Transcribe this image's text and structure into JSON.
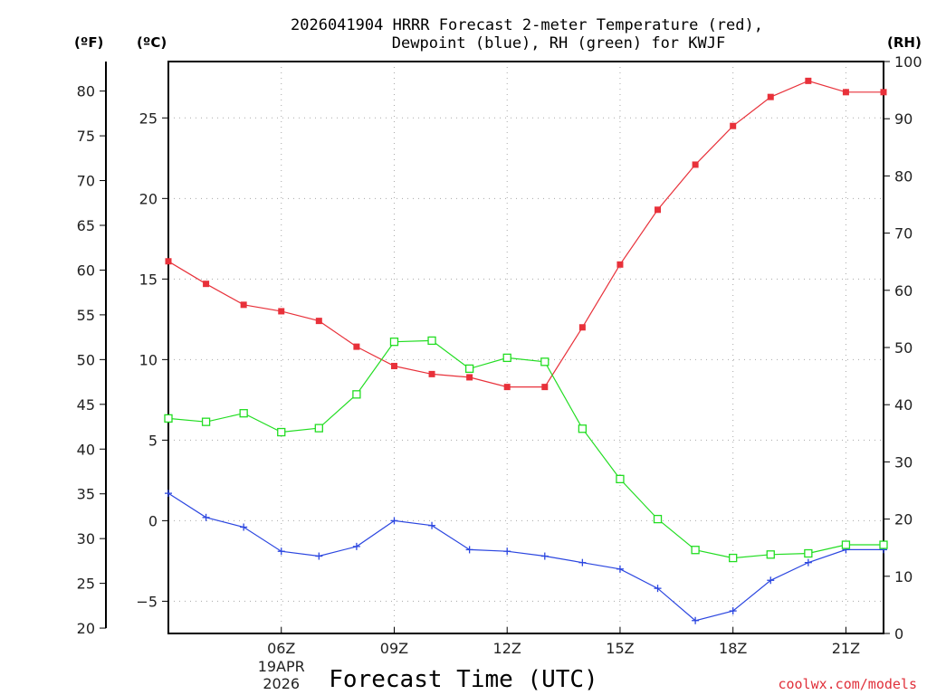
{
  "chart_data": {
    "type": "line",
    "title_line1": "2026041904 HRRR Forecast 2-meter Temperature (red),",
    "title_line2": "Dewpoint (blue), RH (green) for KWJF",
    "left_outer_unit": "(ºF)",
    "left_inner_unit": "(ºC)",
    "right_unit": "(RH)",
    "xlabel": "Forecast Time (UTC)",
    "credit": "coolwx.com/models",
    "hours": [
      3,
      4,
      5,
      6,
      7,
      8,
      9,
      10,
      11,
      12,
      13,
      14,
      15,
      16,
      17,
      18,
      19,
      20,
      21,
      22
    ],
    "xlim": [
      3,
      22
    ],
    "x_ticks": [
      {
        "hour": 6,
        "label": "06Z",
        "sub1": "19APR",
        "sub2": "2026"
      },
      {
        "hour": 9,
        "label": "09Z"
      },
      {
        "hour": 12,
        "label": "12Z"
      },
      {
        "hour": 15,
        "label": "15Z"
      },
      {
        "hour": 18,
        "label": "18Z"
      },
      {
        "hour": 21,
        "label": "21Z"
      }
    ],
    "celsius_axis": {
      "lim": [
        -7,
        28.5
      ],
      "ticks": [
        -5,
        0,
        5,
        10,
        15,
        20,
        25
      ]
    },
    "fahrenheit_axis": {
      "ticks": [
        20,
        25,
        30,
        35,
        40,
        45,
        50,
        55,
        60,
        65,
        70,
        75,
        80
      ]
    },
    "rh_axis": {
      "lim": [
        0,
        100
      ],
      "ticks": [
        0,
        10,
        20,
        30,
        40,
        50,
        60,
        70,
        80,
        90,
        100
      ]
    },
    "series": [
      {
        "name": "Temperature",
        "color": "#e8313a",
        "marker": "filled-square",
        "axis": "celsius",
        "values": [
          16.1,
          14.7,
          13.4,
          13.0,
          12.4,
          10.8,
          9.6,
          9.1,
          8.9,
          8.3,
          8.3,
          12.0,
          15.9,
          19.3,
          22.1,
          24.5,
          26.3,
          27.3,
          26.6,
          26.6
        ]
      },
      {
        "name": "Dewpoint",
        "color": "#2b46e0",
        "marker": "plus",
        "axis": "celsius",
        "values": [
          1.7,
          0.2,
          -0.4,
          -1.9,
          -2.2,
          -1.6,
          0.0,
          -0.3,
          -1.8,
          -1.9,
          -2.2,
          -2.6,
          -3.0,
          -4.2,
          -6.2,
          -5.6,
          -3.7,
          -2.6,
          -1.8,
          -1.8
        ]
      },
      {
        "name": "RH",
        "color": "#22dd22",
        "marker": "open-square",
        "axis": "rh",
        "values": [
          37.6,
          37.0,
          38.5,
          35.2,
          35.9,
          41.8,
          51.0,
          51.2,
          46.3,
          48.2,
          47.5,
          35.8,
          27.0,
          20.0,
          14.6,
          13.2,
          13.8,
          14.0,
          15.5,
          15.5
        ]
      }
    ]
  }
}
